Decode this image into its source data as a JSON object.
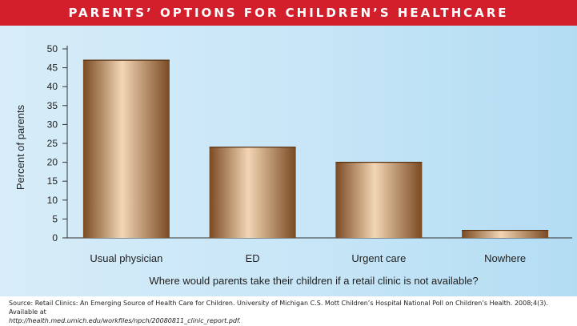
{
  "header": {
    "title": "PARENTS’ OPTIONS FOR CHILDREN’S HEALTHCARE"
  },
  "colors": {
    "banner": "#d21f2b",
    "background": "#c7e6f7",
    "bar_dark": "#7a4a22",
    "bar_light": "#f3d6b5"
  },
  "chart_data": {
    "type": "bar",
    "categories": [
      "Usual physician",
      "ED",
      "Urgent care",
      "Nowhere"
    ],
    "values": [
      47,
      24,
      20,
      2
    ],
    "title": "",
    "xlabel": "Where would parents take their children if a retail clinic is not available?",
    "ylabel": "Percent of parents",
    "ylim": [
      0,
      50
    ],
    "yticks": [
      0,
      5,
      10,
      15,
      20,
      25,
      30,
      35,
      40,
      45,
      50
    ],
    "grid": false
  },
  "source": {
    "text": "Source: Retail Clinics: An Emerging Source of Health Care for Children. University of Michigan C.S. Mott Children’s Hospital National Poll on Children’s Health. 2008;4(3). Available at",
    "url": "http://health.med.umich.edu/workfiles/npch/20080811_clinic_report.pdf."
  }
}
